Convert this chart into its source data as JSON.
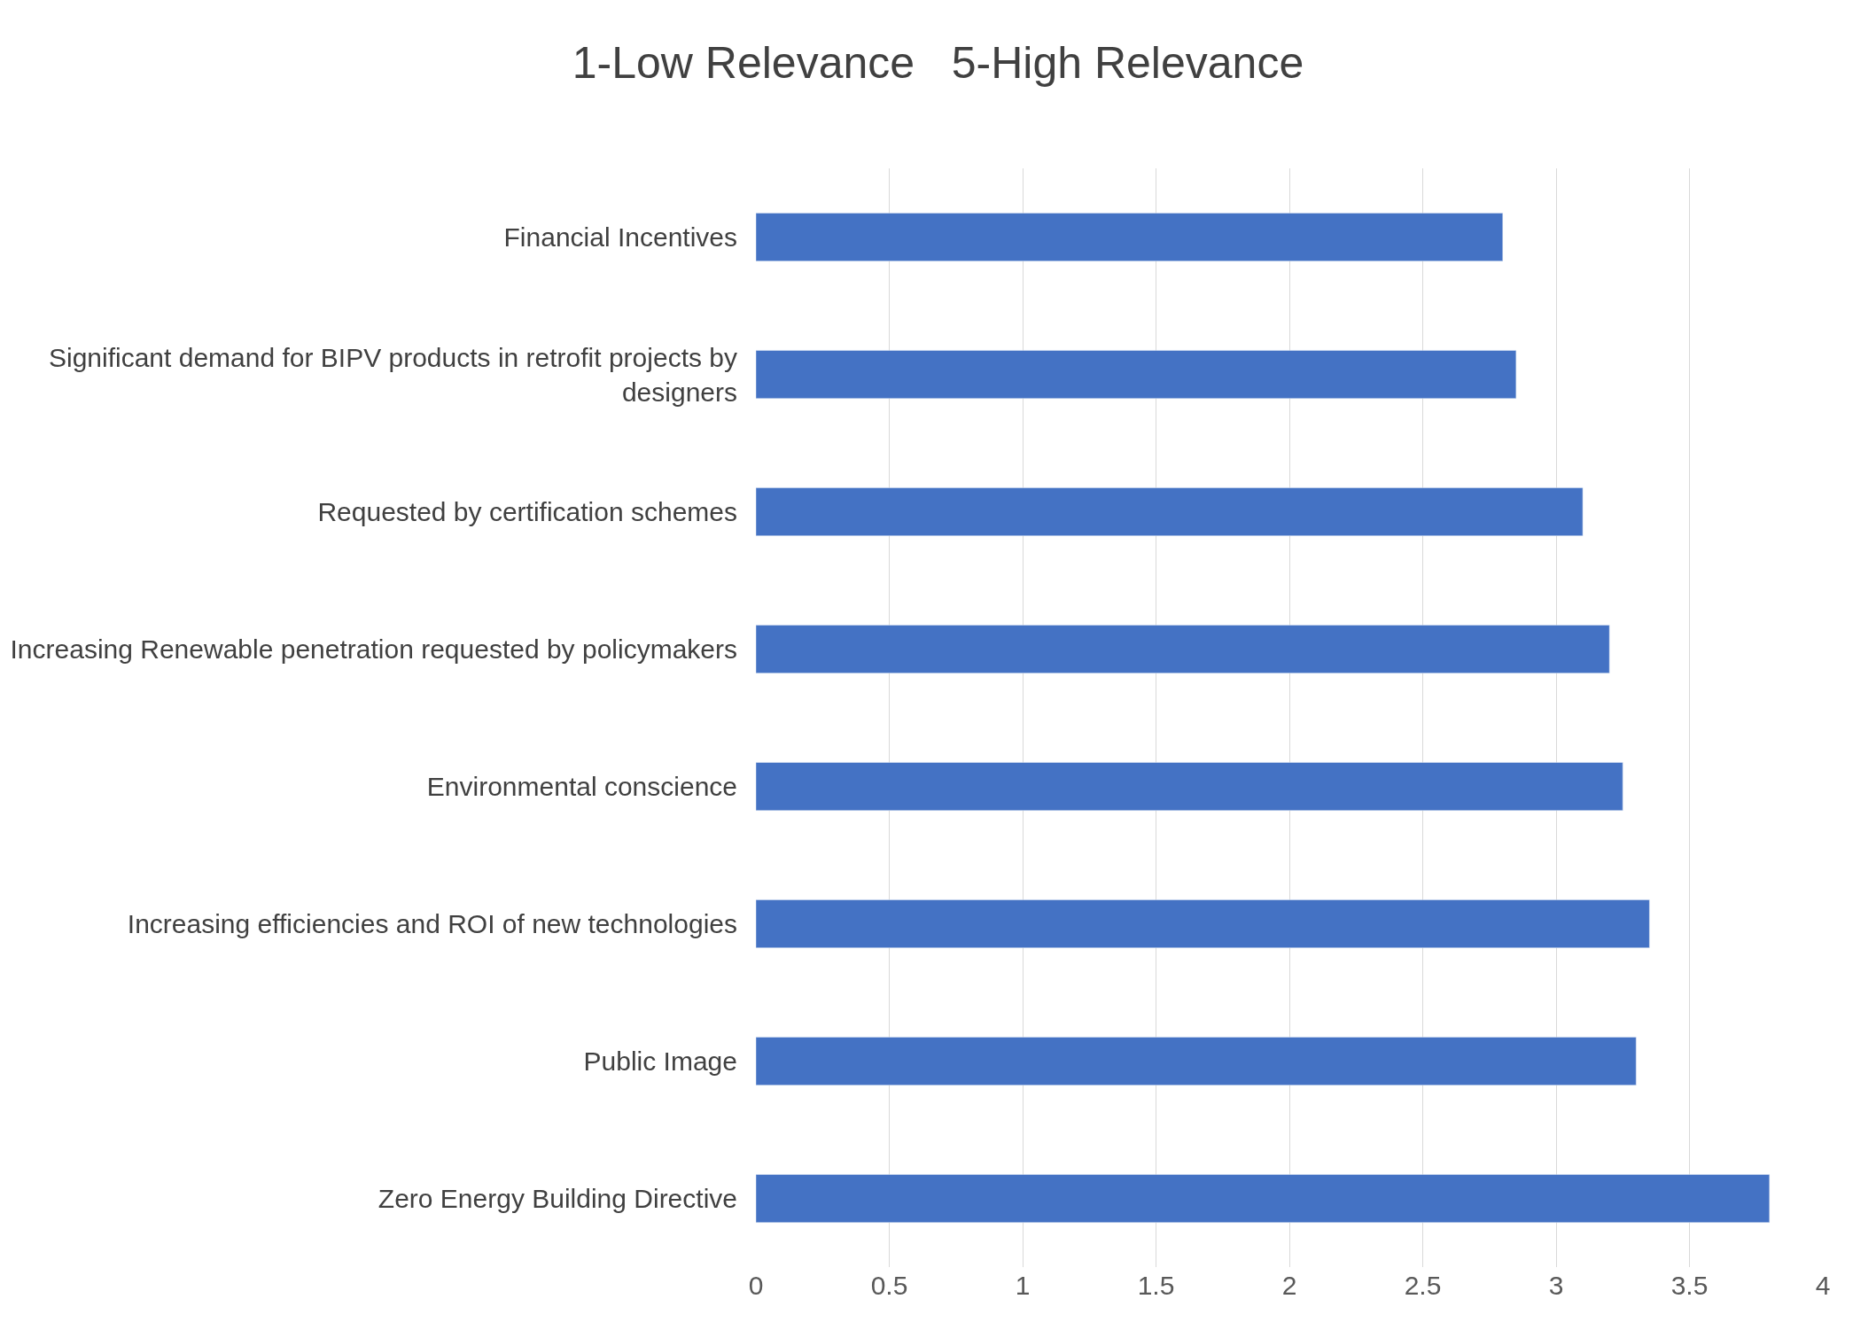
{
  "chart_data": {
    "type": "bar",
    "orientation": "horizontal",
    "title": "1-Low Relevance   5-High Relevance",
    "categories": [
      "Financial Incentives",
      "Significant demand for BIPV products in retrofit projects by designers",
      "Requested by certification schemes",
      "Increasing Renewable penetration requested by policymakers",
      "Environmental conscience",
      "Increasing efficiencies and ROI of new technologies",
      "Public Image",
      "Zero Energy Building Directive"
    ],
    "values": [
      2.8,
      2.85,
      3.1,
      3.2,
      3.25,
      3.35,
      3.3,
      3.8
    ],
    "color": "#4472c4",
    "xlim": [
      0,
      4
    ],
    "xticks": [
      0,
      0.5,
      1,
      1.5,
      2,
      2.5,
      3,
      3.5,
      4
    ],
    "grid": "x"
  }
}
